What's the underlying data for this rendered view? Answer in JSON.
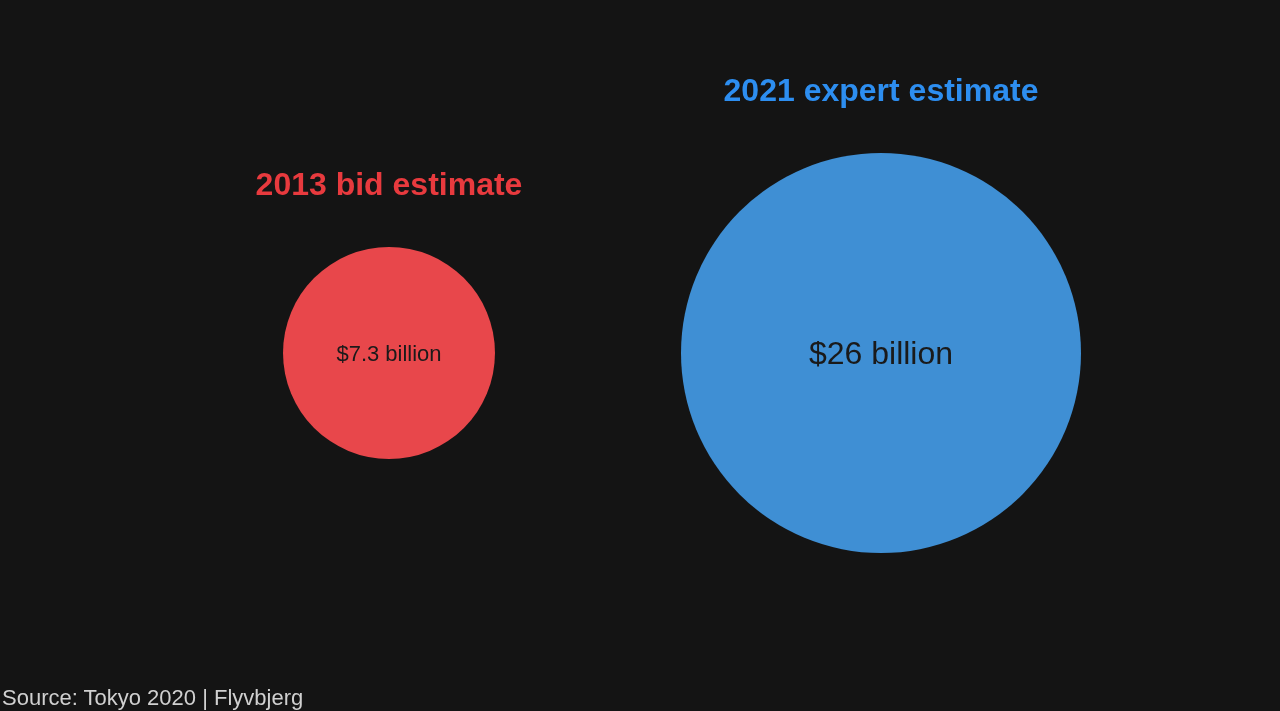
{
  "chart_data": {
    "type": "other",
    "categories": [
      "2013 bid estimate",
      "2021 expert estimate"
    ],
    "values": [
      7.3,
      26
    ],
    "value_labels": [
      "$7.3 billion",
      "$26 billion"
    ],
    "colors": [
      "#e8474b",
      "#3f8fd4"
    ],
    "annotations": [
      "Source: Tokyo 2020 | Flyvbjerg"
    ]
  }
}
